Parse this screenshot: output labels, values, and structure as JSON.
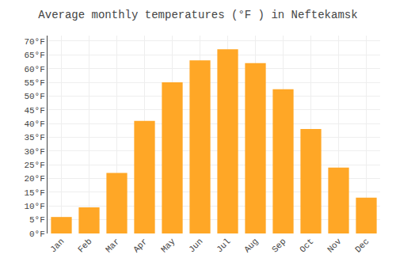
{
  "chart_data": {
    "type": "bar",
    "title": "Average monthly temperatures (°F ) in Neftekamsk",
    "categories": [
      "Jan",
      "Feb",
      "Mar",
      "Apr",
      "May",
      "Jun",
      "Jul",
      "Aug",
      "Sep",
      "Oct",
      "Nov",
      "Dec"
    ],
    "values": [
      6,
      9.5,
      22,
      41,
      55,
      63,
      67,
      62,
      52.5,
      38,
      24,
      13
    ],
    "color": "#FFA726",
    "ylim": [
      0,
      72
    ],
    "yticks": [
      {
        "value": 0,
        "label": "0°F"
      },
      {
        "value": 5,
        "label": "5°F"
      },
      {
        "value": 10,
        "label": "10°F"
      },
      {
        "value": 15,
        "label": "15°F"
      },
      {
        "value": 20,
        "label": "20°F"
      },
      {
        "value": 25,
        "label": "25°F"
      },
      {
        "value": 30,
        "label": "30°F"
      },
      {
        "value": 35,
        "label": "35°F"
      },
      {
        "value": 40,
        "label": "40°F"
      },
      {
        "value": 45,
        "label": "45°F"
      },
      {
        "value": 50,
        "label": "50°F"
      },
      {
        "value": 55,
        "label": "55°F"
      },
      {
        "value": 60,
        "label": "60°F"
      },
      {
        "value": 65,
        "label": "65°F"
      },
      {
        "value": 70,
        "label": "70°F"
      }
    ],
    "grid": true
  }
}
